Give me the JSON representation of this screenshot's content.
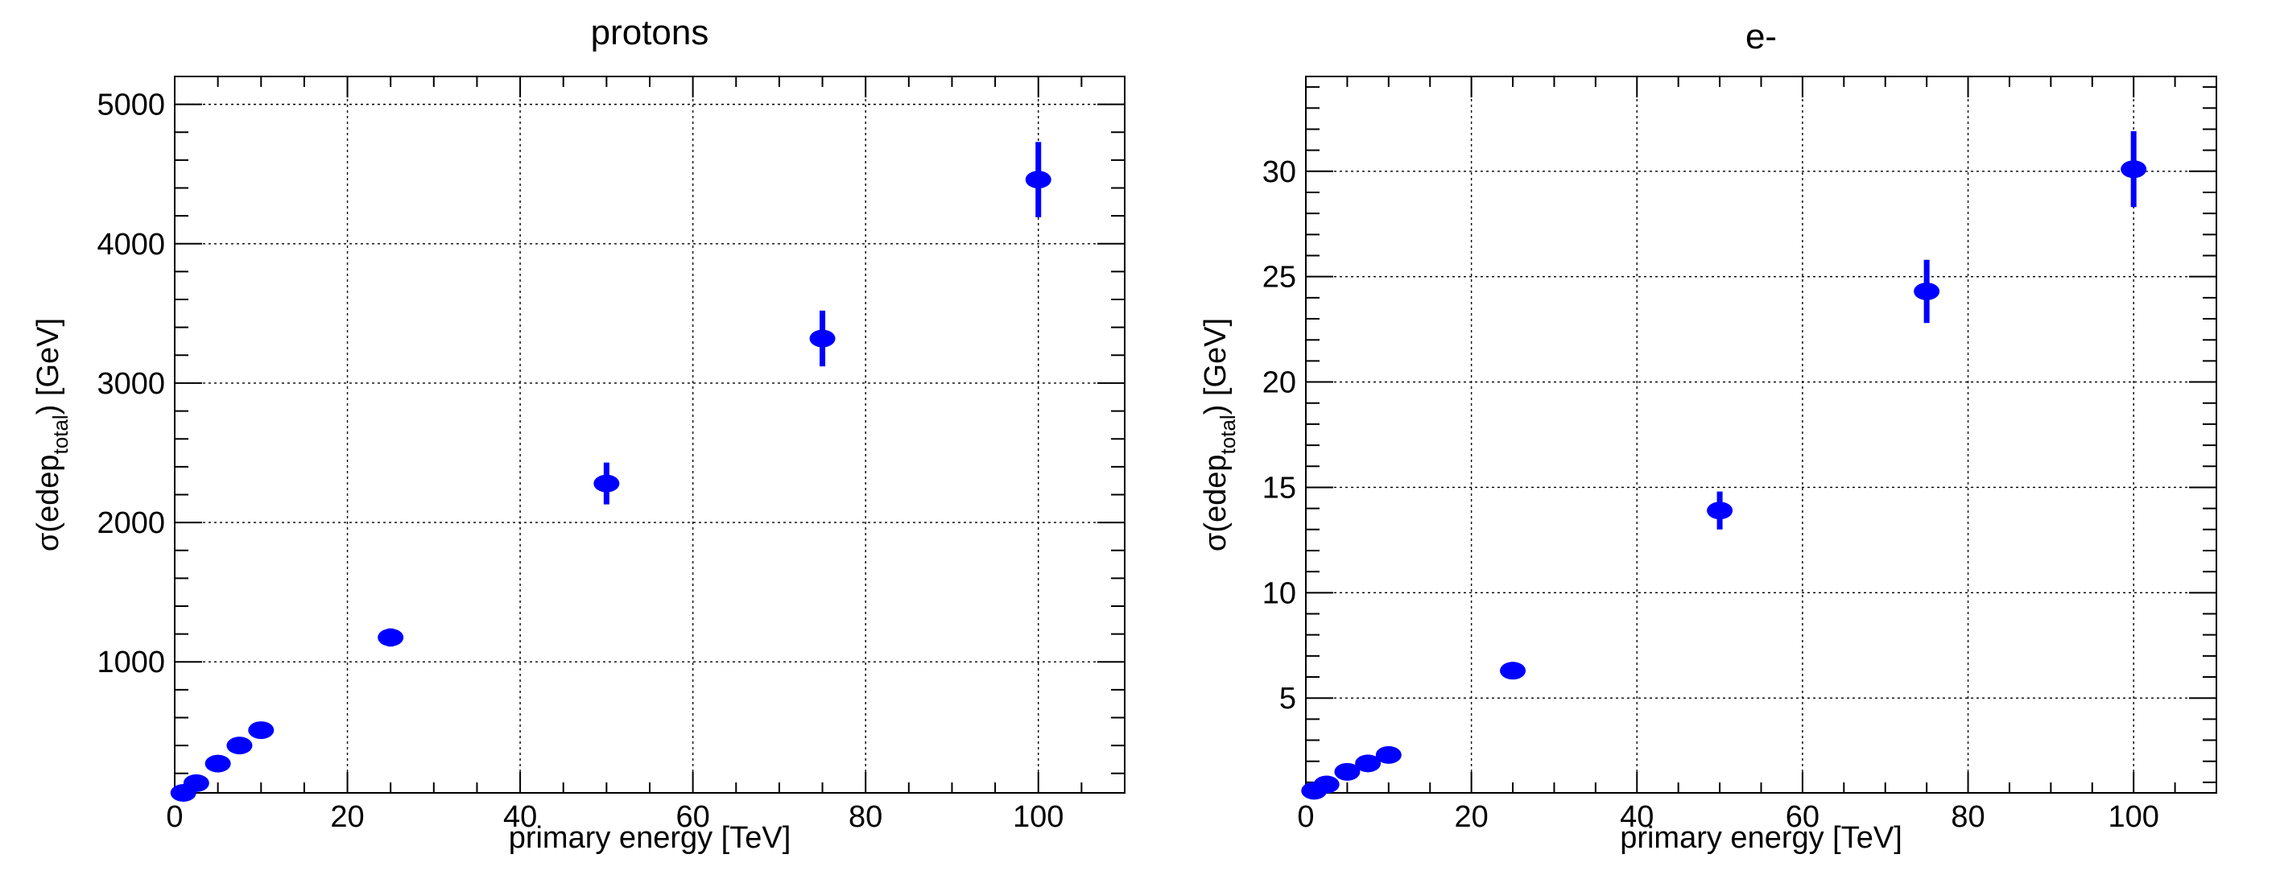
{
  "chart_data": [
    {
      "type": "scatter",
      "title": "protons",
      "xlabel": "primary energy [TeV]",
      "ylabel": {
        "prefix": "σ(edep",
        "subscript": "total",
        "suffix": ") [GeV]"
      },
      "xlim": [
        0,
        110
      ],
      "ylim": [
        60,
        5200
      ],
      "xticks": [
        0,
        20,
        40,
        60,
        80,
        100
      ],
      "xtick_labels": [
        "0",
        "20",
        "40",
        "60",
        "80",
        "100"
      ],
      "yticks": [
        1000,
        2000,
        3000,
        4000,
        5000
      ],
      "ytick_labels": [
        "1000",
        "2000",
        "3000",
        "4000",
        "5000"
      ],
      "grid": true,
      "color": "#0000ff",
      "x": [
        1,
        2.5,
        5,
        7.5,
        10,
        25,
        50,
        75,
        100
      ],
      "y": [
        60,
        130,
        270,
        400,
        510,
        1175,
        2280,
        3320,
        4460
      ],
      "yerr": [
        10,
        20,
        30,
        35,
        40,
        65,
        150,
        200,
        270
      ]
    },
    {
      "type": "scatter",
      "title": "e-",
      "xlabel": "primary energy [TeV]",
      "ylabel": {
        "prefix": "σ(edep",
        "subscript": "total",
        "suffix": ") [GeV]"
      },
      "xlim": [
        0,
        110
      ],
      "ylim": [
        0.5,
        34.5
      ],
      "xticks": [
        0,
        20,
        40,
        60,
        80,
        100
      ],
      "xtick_labels": [
        "0",
        "20",
        "40",
        "60",
        "80",
        "100"
      ],
      "yticks": [
        5,
        10,
        15,
        20,
        25,
        30
      ],
      "ytick_labels": [
        "5",
        "10",
        "15",
        "20",
        "25",
        "30"
      ],
      "grid": true,
      "color": "#0000ff",
      "x": [
        1,
        2.5,
        5,
        7.5,
        10,
        25,
        50,
        75,
        100
      ],
      "y": [
        0.6,
        0.9,
        1.5,
        1.9,
        2.3,
        6.3,
        13.9,
        24.3,
        30.1
      ],
      "yerr": [
        0.1,
        0.1,
        0.15,
        0.2,
        0.2,
        0.3,
        0.9,
        1.5,
        1.8
      ]
    }
  ]
}
